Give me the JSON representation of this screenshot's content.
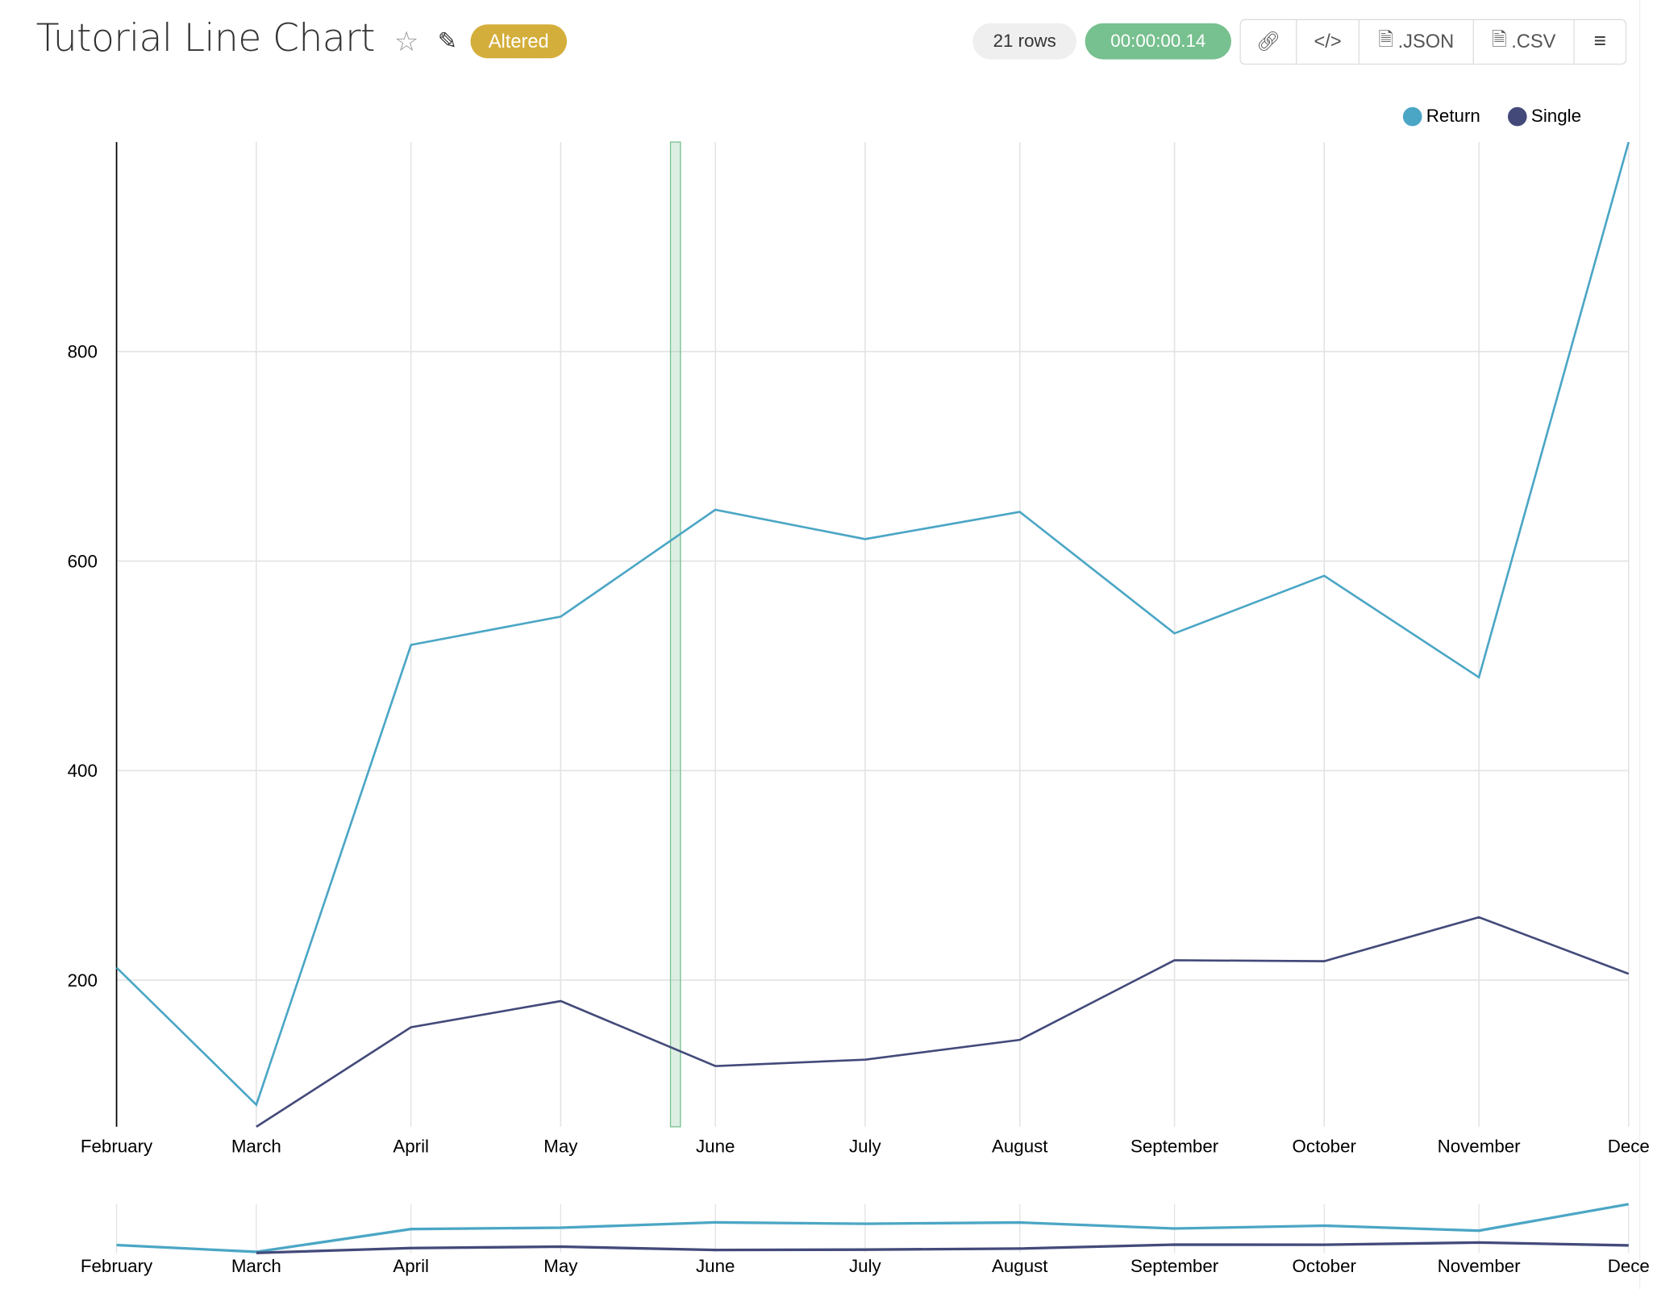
{
  "header": {
    "title": "Tutorial Line Chart",
    "star_icon": "star-icon",
    "edit_icon": "edit-icon",
    "badge": "Altered",
    "badge_color": "#d4ae3b",
    "rows": "21 rows",
    "elapsed": "00:00:00.14",
    "elapsed_color": "#77c08f",
    "buttons": [
      {
        "icon": "link-icon",
        "label": ""
      },
      {
        "icon": "code-icon",
        "label": ""
      },
      {
        "icon": "json-file-icon",
        "label": ".JSON"
      },
      {
        "icon": "csv-file-icon",
        "label": ".CSV"
      },
      {
        "icon": "menu-icon",
        "label": ""
      }
    ]
  },
  "chart_data": {
    "type": "line",
    "categories": [
      "February",
      "March",
      "April",
      "May",
      "June",
      "July",
      "August",
      "September",
      "October",
      "November",
      "December"
    ],
    "tick_labels": [
      "February",
      "March",
      "April",
      "May",
      "June",
      "July",
      "August",
      "September",
      "October",
      "November",
      "Dece"
    ],
    "series": [
      {
        "name": "Return",
        "color": "#4ba6c5",
        "values": [
          212,
          81,
          520,
          547,
          649,
          621,
          647,
          531,
          586,
          489,
          1000
        ]
      },
      {
        "name": "Single",
        "color": "#434a7a",
        "values": [
          null,
          60,
          155,
          180,
          118,
          124,
          143,
          219,
          218,
          260,
          206
        ]
      }
    ],
    "y_ticks": [
      200,
      400,
      600,
      800
    ],
    "ylim": [
      60,
      1000
    ],
    "grid": true,
    "legend_position": "top-right",
    "highlight": {
      "start": "May 23",
      "end": "May 25",
      "color": "#77c08f"
    },
    "overview": true
  }
}
